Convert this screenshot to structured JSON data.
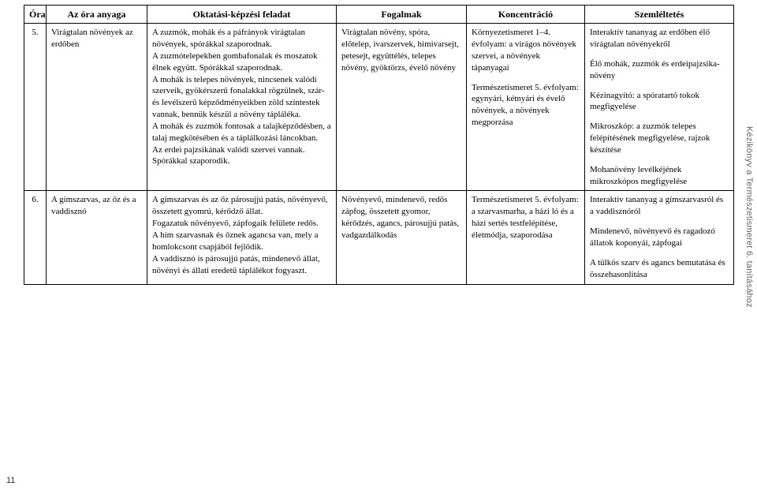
{
  "sideTitle": "Kézikönyv a Természetismeret 6. tanításához",
  "pageNumber": "11",
  "headers": {
    "ora": "Óra",
    "anyaga": "Az óra anyaga",
    "oktatasi": "Oktatási-képzési feladat",
    "fogalmak": "Fogalmak",
    "koncentracio": "Koncentráció",
    "szemleltetes": "Szemléltetés"
  },
  "rows": [
    {
      "ora": "5.",
      "anyaga": "Virágtalan növények az erdőben",
      "oktatasi": [
        "A zuzmók, mohák és a páfrányok virágtalan növények, spórákkal szaporodnak.",
        "A zuzmótelepekben gombafonalak és moszatok élnek együtt. Spórákkal szaporodnak.",
        "A mohák is telepes növények, nincsenek valódi szerveik, gyökérszerű fonalakkal rögzülnek, szár- és levélszerű képződményeikben zöld színtestek vannak, bennük készül a növény tápláléka.",
        "A mohák és zuzmók fontosak a talajképződésben, a talaj megkötésében és a táplálkozási láncokban.",
        "Az erdei pajzsikának valódi szervei vannak. Spórákkal szaporodik."
      ],
      "fogalmak": "Virágtalan növény, spóra, előtelep, ivarszervek, hímivarsejt, petesejt, együttélés, telepes növény, gyöktörzs, évelő növény",
      "koncentracio": [
        "Környezetismeret 1–4. évfolyam: a virágos növények szervei, a növények tápanyagai",
        "",
        "Természetismeret 5. évfolyam: egynyári, kétnyári és évelő növények, a növények megporzása"
      ],
      "szemleltetes": [
        "Interaktív tananyag az erdőben élő virágtalan növényekről",
        "",
        "Élő mohák, zuzmók és erdeipajzsika-növény",
        "",
        "Kézinagyító: a spóratartó tokok megfigyelése",
        "",
        "Mikroszkóp: a zuzmók telepes felépítésének megfigyelése, rajzok készítése",
        "",
        "Mohanövény levélkéjének mikroszkópos megfigyelése"
      ]
    },
    {
      "ora": "6.",
      "anyaga": "A gímszarvas, az őz és a vaddisznó",
      "oktatasi": [
        "A gímszarvas és az őz párosujjú patás, növényevő, összetett gyomrú, kérődző állat.",
        "Fogazatuk növényevő, zápfogaik felülete redős.",
        "A hím szarvasnak és őznek agancsa van, mely a homlokcsont csapjából fejlődik.",
        "A vaddisznó is párosujjú patás, mindenevő állat, növényi és állati eredetű táplálékot fogyaszt."
      ],
      "fogalmak": "Növényevő, mindenevő, redős zápfog, összetett gyomor, kérődzés, agancs, párosujjú patás, vadgazdálkodás",
      "koncentracio": [
        "Természetismeret 5. évfolyam: a szarvasmarha, a házi ló és a házi sertés testfelépítése, életmódja, szaporodása"
      ],
      "szemleltetes": [
        "Interaktív tananyag a gímszarvasról és a vaddisznóról",
        "",
        "Mindenevő, növényevő és ragadozó állatok koponyái, zápfogai",
        "",
        "A tülkös szarv és agancs bemutatása és összehasonlítása"
      ]
    }
  ]
}
